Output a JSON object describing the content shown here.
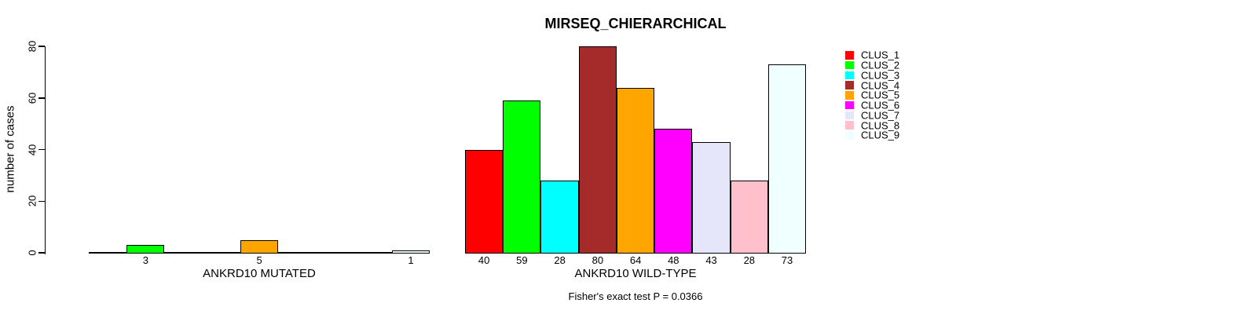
{
  "chart_data": {
    "type": "bar",
    "title": "MIRSEQ_CHIERARCHICAL",
    "ylabel": "number of cases",
    "ylim": [
      0,
      80
    ],
    "yticks": [
      0,
      20,
      40,
      60,
      80
    ],
    "grid": false,
    "bar_gap": 0,
    "annotation": "Fisher's exact test P = 0.0366",
    "legend": {
      "position": "right",
      "entries": [
        {
          "label": "CLUS_1",
          "color": "#ff0000"
        },
        {
          "label": "CLUS_2",
          "color": "#00ff00"
        },
        {
          "label": "CLUS_3",
          "color": "#00ffff"
        },
        {
          "label": "CLUS_4",
          "color": "#a52a2a"
        },
        {
          "label": "CLUS_5",
          "color": "#ffa500"
        },
        {
          "label": "CLUS_6",
          "color": "#ff00ff"
        },
        {
          "label": "CLUS_7",
          "color": "#e6e6fa"
        },
        {
          "label": "CLUS_8",
          "color": "#ffc0cb"
        },
        {
          "label": "CLUS_9",
          "color": "#f0ffff"
        }
      ]
    },
    "groups": [
      {
        "label": "ANKRD10 MUTATED",
        "categories": [
          "CLUS_1",
          "CLUS_2",
          "CLUS_3",
          "CLUS_4",
          "CLUS_5",
          "CLUS_6",
          "CLUS_7",
          "CLUS_8",
          "CLUS_9"
        ],
        "values": [
          0,
          3,
          0,
          0,
          5,
          0,
          0,
          0,
          1
        ]
      },
      {
        "label": "ANKRD10 WILD-TYPE",
        "categories": [
          "CLUS_1",
          "CLUS_2",
          "CLUS_3",
          "CLUS_4",
          "CLUS_5",
          "CLUS_6",
          "CLUS_7",
          "CLUS_8",
          "CLUS_9"
        ],
        "values": [
          40,
          59,
          28,
          80,
          64,
          48,
          43,
          28,
          73
        ]
      }
    ]
  }
}
